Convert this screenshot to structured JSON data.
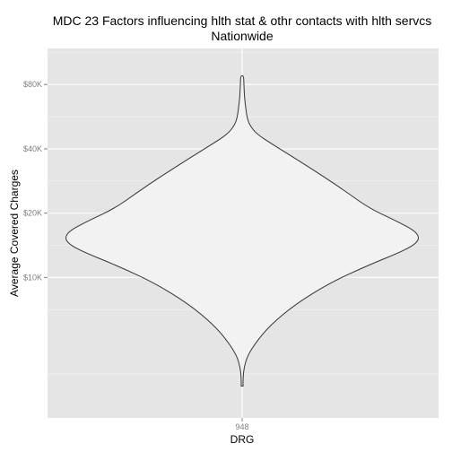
{
  "chart_data": {
    "type": "violin",
    "title_lines": [
      "MDC 23 Factors influencing hlth stat & othr contacts with hlth servcs",
      "Nationwide"
    ],
    "xlabel": "DRG",
    "ylabel": "Average Covered Charges",
    "y_scale": "log2",
    "y_ticks": [
      {
        "value": 10000,
        "label": "$10K"
      },
      {
        "value": 20000,
        "label": "$20K"
      },
      {
        "value": 40000,
        "label": "$40K"
      },
      {
        "value": 80000,
        "label": "$80K"
      }
    ],
    "ylim": [
      2200,
      118000
    ],
    "categories": [
      "948"
    ],
    "grid": true,
    "colors": {
      "panel": "#e5e5e5",
      "grid_major": "#ffffff",
      "grid_minor": "#f2f2f2",
      "violin_fill": "#f2f2f2",
      "violin_line": "#333333"
    },
    "violin_profile": [
      {
        "y": 3100,
        "w": 0.005
      },
      {
        "y": 3400,
        "w": 0.005
      },
      {
        "y": 3800,
        "w": 0.011
      },
      {
        "y": 4300,
        "w": 0.03
      },
      {
        "y": 5000,
        "w": 0.08
      },
      {
        "y": 6000,
        "w": 0.16
      },
      {
        "y": 7500,
        "w": 0.3
      },
      {
        "y": 9500,
        "w": 0.5
      },
      {
        "y": 11500,
        "w": 0.72
      },
      {
        "y": 13000,
        "w": 0.88
      },
      {
        "y": 14200,
        "w": 0.97
      },
      {
        "y": 15300,
        "w": 1.0
      },
      {
        "y": 16600,
        "w": 0.97
      },
      {
        "y": 18500,
        "w": 0.86
      },
      {
        "y": 21000,
        "w": 0.72
      },
      {
        "y": 25000,
        "w": 0.59
      },
      {
        "y": 30000,
        "w": 0.45
      },
      {
        "y": 36000,
        "w": 0.3
      },
      {
        "y": 42000,
        "w": 0.17
      },
      {
        "y": 47000,
        "w": 0.08
      },
      {
        "y": 52000,
        "w": 0.04
      },
      {
        "y": 57000,
        "w": 0.026
      },
      {
        "y": 65000,
        "w": 0.017
      },
      {
        "y": 72000,
        "w": 0.012
      },
      {
        "y": 80000,
        "w": 0.01
      },
      {
        "y": 88000,
        "w": 0.008
      }
    ]
  }
}
